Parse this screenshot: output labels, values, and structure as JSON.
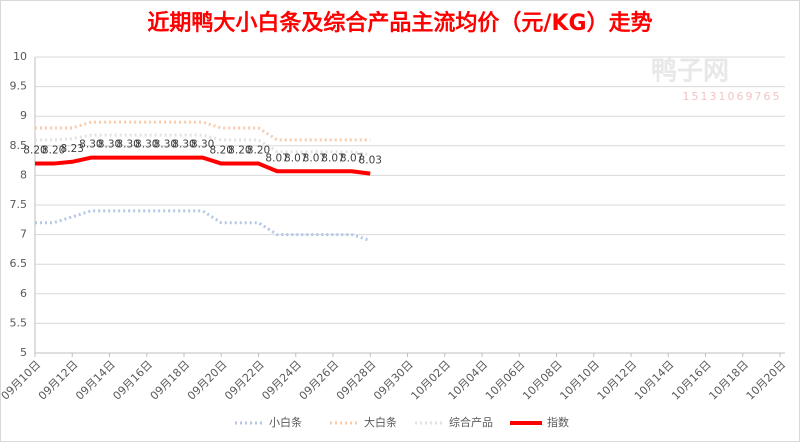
{
  "chart_data": {
    "type": "line",
    "title": "近期鸭大小白条及综合产品主流均价（元/KG）走势",
    "watermark": [
      "鸭子网",
      "15131069765"
    ],
    "categories": [
      "09月10日",
      null,
      "09月12日",
      null,
      "09月14日",
      null,
      "09月16日",
      null,
      "09月18日",
      null,
      "09月20日",
      null,
      "09月22日",
      null,
      "09月24日",
      null,
      "09月26日",
      null,
      "09月28日",
      null,
      "09月30日",
      null,
      "10月02日",
      null,
      "10月04日",
      null,
      "10月06日",
      null,
      "10月08日",
      null,
      "10月10日",
      null,
      "10月12日",
      null,
      "10月14日",
      null,
      "10月16日",
      null,
      "10月18日",
      null,
      "10月20日"
    ],
    "ylim": [
      5,
      10
    ],
    "yticks": [
      5,
      5.5,
      6,
      6.5,
      7,
      7.5,
      8,
      8.5,
      9,
      9.5,
      10
    ],
    "grid": true,
    "legend": "bottom",
    "series": [
      {
        "name": "小白条",
        "color": "#b4c7e7",
        "style": "dotted",
        "values": [
          7.2,
          7.2,
          7.3,
          7.4,
          7.4,
          7.4,
          7.4,
          7.4,
          7.4,
          7.4,
          7.2,
          7.2,
          7.2,
          7.0,
          7.0,
          7.0,
          7.0,
          7.0,
          6.9,
          null,
          null,
          null,
          null,
          null,
          null,
          null,
          null,
          null,
          null,
          null,
          null,
          null,
          null,
          null,
          null,
          null,
          null,
          null,
          null,
          null,
          null
        ]
      },
      {
        "name": "大白条",
        "color": "#f8cbad",
        "style": "dotted",
        "values": [
          8.8,
          8.8,
          8.8,
          8.9,
          8.9,
          8.9,
          8.9,
          8.9,
          8.9,
          8.9,
          8.8,
          8.8,
          8.8,
          8.6,
          8.6,
          8.6,
          8.6,
          8.6,
          8.6,
          null,
          null,
          null,
          null,
          null,
          null,
          null,
          null,
          null,
          null,
          null,
          null,
          null,
          null,
          null,
          null,
          null,
          null,
          null,
          null,
          null,
          null
        ]
      },
      {
        "name": "综合产品",
        "color": "#e2e2e2",
        "style": "dotted",
        "values": [
          8.6,
          8.6,
          8.62,
          8.68,
          8.68,
          8.68,
          8.68,
          8.68,
          8.68,
          8.68,
          8.6,
          8.6,
          8.6,
          8.4,
          8.4,
          8.4,
          8.4,
          8.4,
          8.35,
          null,
          null,
          null,
          null,
          null,
          null,
          null,
          null,
          null,
          null,
          null,
          null,
          null,
          null,
          null,
          null,
          null,
          null,
          null,
          null,
          null,
          null
        ]
      },
      {
        "name": "指数",
        "color": "#ff0000",
        "style": "solid",
        "values": [
          8.2,
          8.2,
          8.23,
          8.3,
          8.3,
          8.3,
          8.3,
          8.3,
          8.3,
          8.3,
          8.2,
          8.2,
          8.2,
          8.07,
          8.07,
          8.07,
          8.07,
          8.07,
          8.03,
          null,
          null,
          null,
          null,
          null,
          null,
          null,
          null,
          null,
          null,
          null,
          null,
          null,
          null,
          null,
          null,
          null,
          null,
          null,
          null,
          null,
          null
        ],
        "value_labels": [
          "8.20",
          "8.20",
          "8.23",
          "8.30",
          "8.30",
          "8.30",
          "8.30",
          "8.30",
          "8.30",
          "8.30",
          "8.20",
          "8.20",
          "8.20",
          "8.07",
          "8.07",
          "8.07",
          "8.07",
          "8.07",
          "8.03",
          null,
          null,
          null,
          null,
          null,
          null,
          null,
          null,
          null,
          null,
          null,
          null,
          null,
          null,
          null,
          null,
          null,
          null,
          null,
          null,
          null,
          null
        ]
      }
    ]
  }
}
